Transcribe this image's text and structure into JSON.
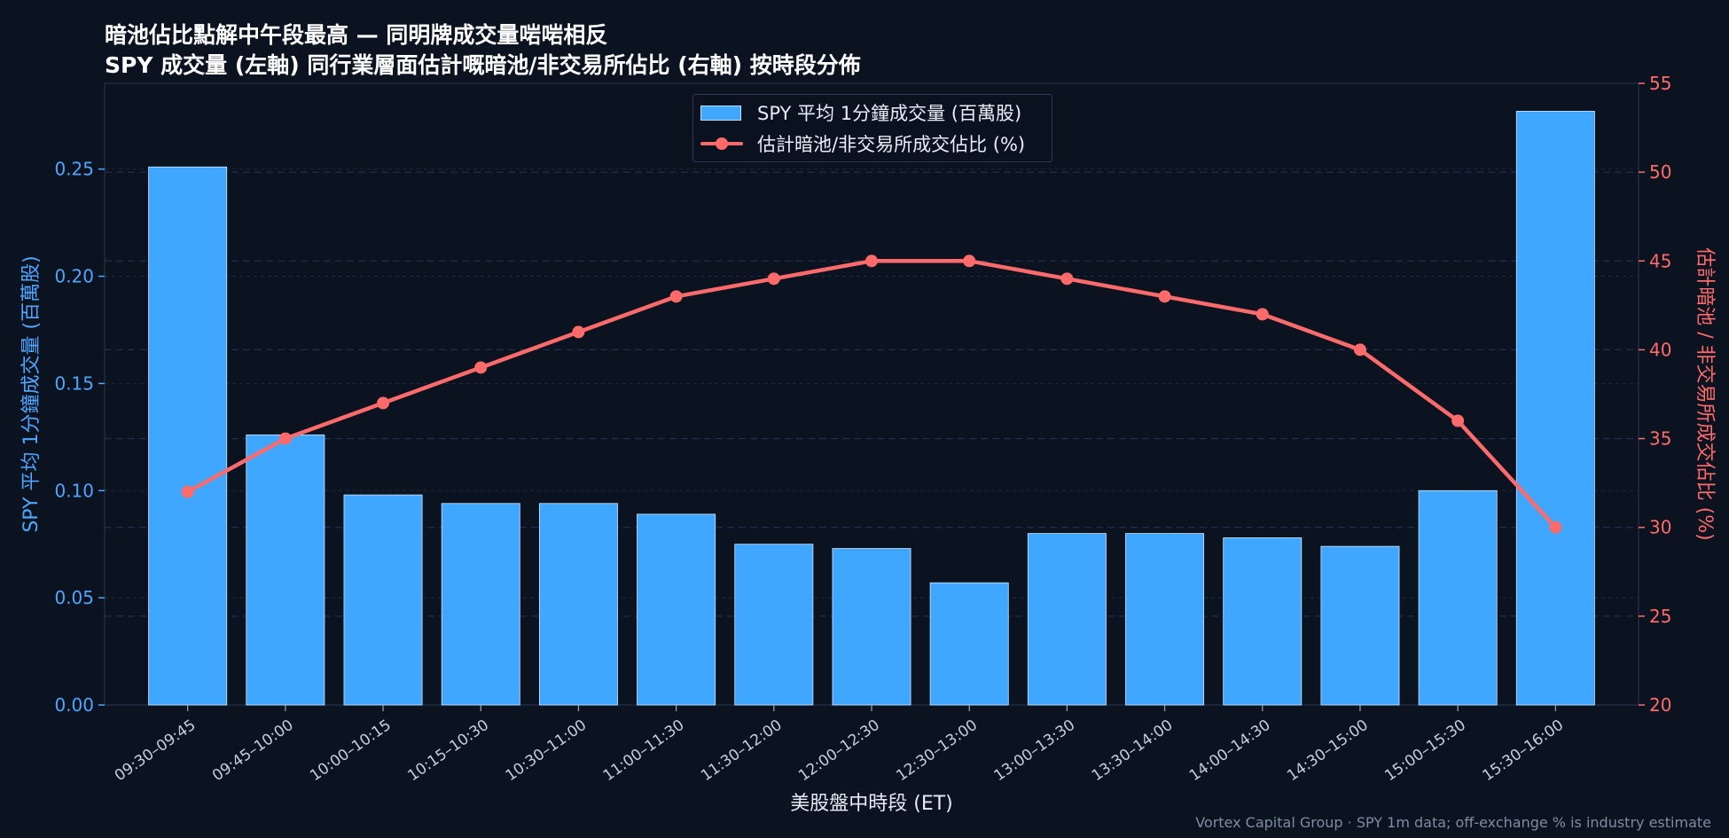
{
  "title_line1": "暗池佔比點解中午段最高 — 同明牌成交量啱啱相反",
  "title_line2": "SPY 成交量 (左軸) 同行業層面估計嘅暗池/非交易所佔比 (右軸) 按時段分佈",
  "footer": "Vortex Capital Group  ·  SPY 1m data; off-exchange % is industry estimate",
  "colors": {
    "background": "#0b1220",
    "bar": "#3fa7ff",
    "line": "#ff6b6b",
    "left_axis": "#4da6ff",
    "right_axis": "#ff6b6b"
  },
  "chart_data": {
    "type": "bar",
    "title": "暗池佔比點解中午段最高 — 同明牌成交量啱啱相反",
    "subtitle": "SPY 成交量 (左軸) 同行業層面估計嘅暗池/非交易所佔比 (右軸) 按時段分佈",
    "xlabel": "美股盤中時段 (ET)",
    "ylabel": "SPY 平均 1分鐘成交量 (百萬股)",
    "ylabel_right": "估計暗池 / 非交易所成交佔比 (%)",
    "categories": [
      "09:30–09:45",
      "09:45–10:00",
      "10:00–10:15",
      "10:15–10:30",
      "10:30–11:00",
      "11:00–11:30",
      "11:30–12:00",
      "12:00–12:30",
      "12:30–13:00",
      "13:00–13:30",
      "13:30–14:00",
      "14:00–14:30",
      "14:30–15:00",
      "15:00–15:30",
      "15:30–16:00"
    ],
    "series": [
      {
        "name": "SPY 平均 1分鐘成交量 (百萬股)",
        "type": "bar",
        "axis": "left",
        "values": [
          0.251,
          0.126,
          0.098,
          0.094,
          0.094,
          0.089,
          0.075,
          0.073,
          0.057,
          0.08,
          0.08,
          0.078,
          0.074,
          0.1,
          0.277
        ]
      },
      {
        "name": "估計暗池/非交易所成交佔比 (%)",
        "type": "line",
        "axis": "right",
        "values": [
          32,
          35,
          37,
          39,
          41,
          43,
          44,
          45,
          45,
          44,
          43,
          42,
          40,
          36,
          30
        ]
      }
    ],
    "ylim": [
      0,
      0.29
    ],
    "ylim_right": [
      20,
      55
    ],
    "yticks": [
      "0.00",
      "0.05",
      "0.10",
      "0.15",
      "0.20",
      "0.25"
    ],
    "yticks_right": [
      "20",
      "25",
      "30",
      "35",
      "40",
      "45",
      "50",
      "55"
    ],
    "grid": true,
    "legend_position": "top-center"
  }
}
